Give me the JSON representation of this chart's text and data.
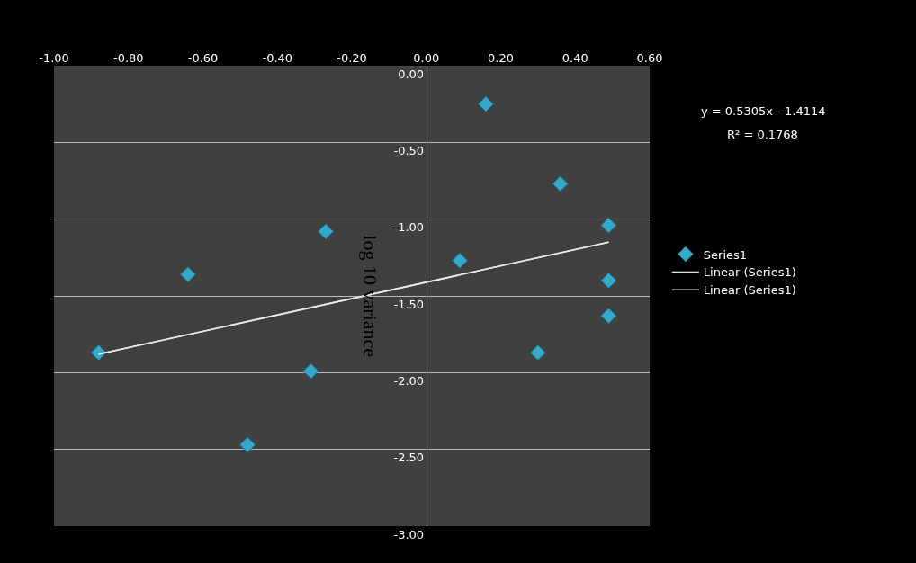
{
  "chart_data": {
    "type": "scatter",
    "ylabel": "log 10 variance",
    "annotations": [
      "y = 0.5305x - 1.4114",
      "R² = 0.1768"
    ],
    "series": [
      {
        "name": "Series1",
        "color": "#35a9c9",
        "marker": "diamond",
        "x": [
          -0.88,
          -0.64,
          -0.48,
          -0.31,
          -0.27,
          0.09,
          0.16,
          0.3,
          0.36,
          0.49,
          0.49,
          0.49
        ],
        "values": [
          -1.87,
          -1.36,
          -2.47,
          -1.99,
          -1.08,
          -1.27,
          -0.25,
          -1.87,
          -0.77,
          -1.04,
          -1.4,
          -1.63
        ]
      },
      {
        "name": "Linear (Series1)",
        "type": "line",
        "color": "#e8e8e8",
        "marker": "none",
        "x": [
          -0.88,
          0.49
        ],
        "values": [
          -1.88,
          -1.15
        ]
      },
      {
        "name": "Linear (Series1)",
        "type": "line",
        "color": "#e8e8e8",
        "marker": "none",
        "x": [
          -0.88,
          0.49
        ],
        "values": [
          -1.88,
          -1.15
        ]
      }
    ],
    "xlim": [
      -1.0,
      0.6
    ],
    "xticks": [
      {
        "value": -1.0,
        "label": "-1.00"
      },
      {
        "value": -0.8,
        "label": "-0.80"
      },
      {
        "value": -0.6,
        "label": "-0.60"
      },
      {
        "value": -0.4,
        "label": "-0.40"
      },
      {
        "value": -0.2,
        "label": "-0.20"
      },
      {
        "value": 0,
        "label": "0.00"
      },
      {
        "value": 0.2,
        "label": "0.20"
      },
      {
        "value": 0.4,
        "label": "0.40"
      },
      {
        "value": 0.6,
        "label": "0.60"
      }
    ],
    "ylim": [
      -3.0,
      0
    ],
    "yticks": [
      {
        "value": 0,
        "label": "0.00"
      },
      {
        "value": -0.5,
        "label": "-0.50"
      },
      {
        "value": -1.0,
        "label": "-1.00"
      },
      {
        "value": -1.5,
        "label": "-1.50"
      },
      {
        "value": -2.0,
        "label": "-2.00"
      },
      {
        "value": -2.5,
        "label": "-2.50"
      },
      {
        "value": -3.0,
        "label": "-3.00"
      }
    ],
    "grid": "y",
    "legend": "right"
  }
}
